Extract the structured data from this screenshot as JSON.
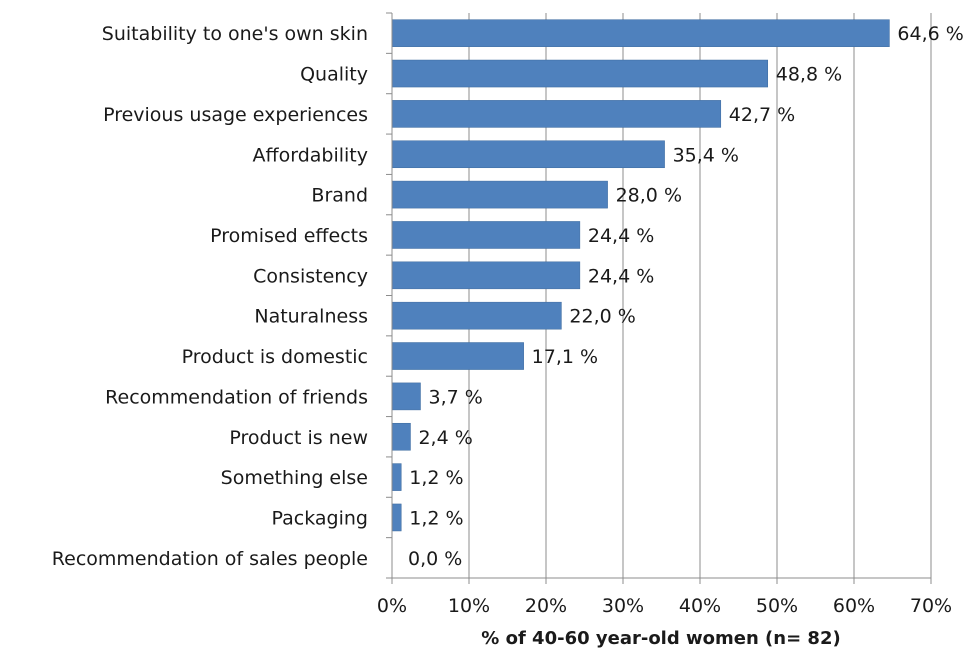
{
  "chart_data": {
    "type": "bar",
    "orientation": "horizontal",
    "categories": [
      "Suitability to one's own skin",
      "Quality",
      "Previous usage experiences",
      "Affordability",
      "Brand",
      "Promised effects",
      "Consistency",
      "Naturalness",
      "Product is domestic",
      "Recommendation of friends",
      "Product is new",
      "Something else",
      "Packaging",
      "Recommendation of sales people"
    ],
    "values": [
      64.6,
      48.8,
      42.7,
      35.4,
      28.0,
      24.4,
      24.4,
      22.0,
      17.1,
      3.7,
      2.4,
      1.2,
      1.2,
      0.0
    ],
    "value_labels": [
      "64,6 %",
      "48,8 %",
      "42,7 %",
      "35,4 %",
      "28,0 %",
      "24,4 %",
      "24,4 %",
      "22,0 %",
      "17,1 %",
      "3,7 %",
      "2,4 %",
      "1,2 %",
      "1,2 %",
      "0,0 %"
    ],
    "xlabel": "% of 40-60 year-old women (n= 82)",
    "ylabel": "",
    "xlim": [
      0,
      70
    ],
    "x_ticks": [
      0,
      10,
      20,
      30,
      40,
      50,
      60,
      70
    ],
    "x_tick_labels": [
      "0%",
      "10%",
      "20%",
      "30%",
      "40%",
      "50%",
      "60%",
      "70%"
    ],
    "grid": "vertical",
    "legend": "none",
    "bar_color": "#4f81bd",
    "grid_color": "#8c8c8c"
  }
}
